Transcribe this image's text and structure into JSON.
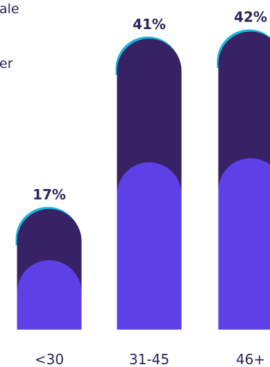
{
  "legend": {
    "item_1": "ale",
    "item_2": "er"
  },
  "chart_data": {
    "type": "bar",
    "categories": [
      "<30",
      "31-45",
      "46+"
    ],
    "series": [
      {
        "values": [
          17,
          41,
          42
        ]
      }
    ],
    "data_labels": [
      "17%",
      "41%",
      "42%"
    ],
    "colors": {
      "outer": "#382266",
      "inner": "#5d40e6",
      "cap_accent": "#17b6dc",
      "label_text": "#2a2557",
      "category_text": "#2a2557"
    }
  }
}
